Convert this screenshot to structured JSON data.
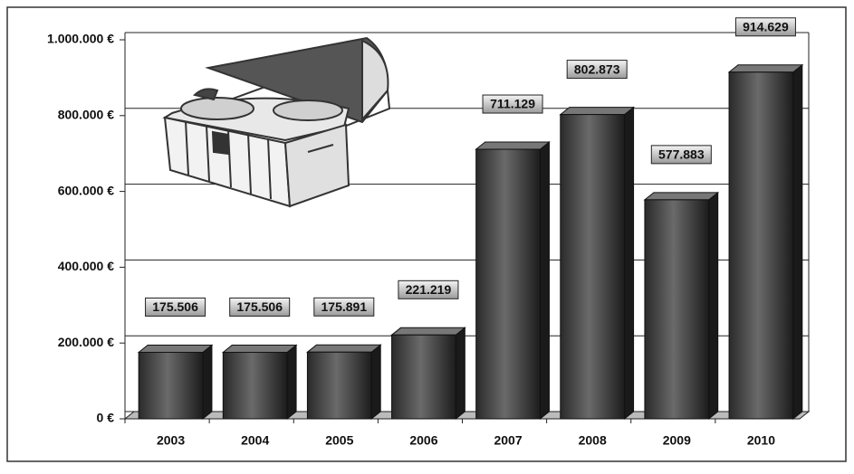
{
  "chart_data": {
    "type": "bar",
    "categories": [
      "2003",
      "2004",
      "2005",
      "2006",
      "2007",
      "2008",
      "2009",
      "2010"
    ],
    "values": [
      175506,
      175506,
      175891,
      221219,
      711129,
      802873,
      577883,
      914629
    ],
    "value_labels": [
      "175.506",
      "175.506",
      "175.891",
      "221.219",
      "711.129",
      "802.873",
      "577.883",
      "914.629"
    ],
    "color": "#4a4a4a",
    "ylim": [
      0,
      1000000
    ],
    "yticks": [
      {
        "value": 0,
        "label": "0 €"
      },
      {
        "value": 200000,
        "label": "200.000 €"
      },
      {
        "value": 400000,
        "label": "400.000 €"
      },
      {
        "value": 600000,
        "label": "600.000 €"
      },
      {
        "value": 800000,
        "label": "800.000 €"
      },
      {
        "value": 1000000,
        "label": "1.000.000 €"
      }
    ],
    "grid": true
  }
}
